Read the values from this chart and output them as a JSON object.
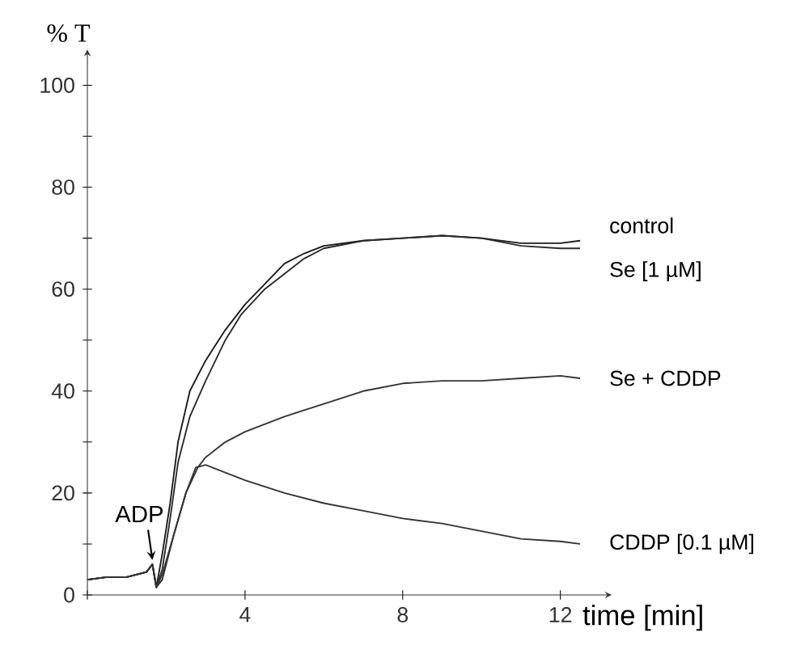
{
  "chart_data": {
    "type": "line",
    "xlabel": "time [min]",
    "ylabel": "% T",
    "xlim": [
      0,
      13.3
    ],
    "ylim": [
      0,
      107
    ],
    "xticks": [
      {
        "value": 0,
        "label": null
      },
      4,
      8,
      12
    ],
    "yticks": [
      0,
      {
        "value": 10,
        "label": null
      },
      20,
      {
        "value": 30,
        "label": null
      },
      40,
      {
        "value": 50,
        "label": null
      },
      60,
      {
        "value": 70,
        "label": null
      },
      80,
      {
        "value": 90,
        "label": null
      },
      100
    ],
    "annotations": [
      {
        "text": "ADP",
        "x": 1.65,
        "y": 6
      }
    ],
    "series": [
      {
        "name": "control",
        "color": "#1a1a1a",
        "x": [
          0,
          0.5,
          1,
          1.5,
          1.65,
          1.75,
          1.9,
          2.1,
          2.3,
          2.6,
          3,
          3.5,
          4,
          4.5,
          5,
          5.5,
          6,
          7,
          8,
          9,
          10,
          11,
          12,
          12.5
        ],
        "values": [
          3,
          3.5,
          3.5,
          4.5,
          6,
          1.5,
          8,
          18,
          30,
          40,
          46,
          52,
          57,
          61,
          65,
          67,
          68.5,
          69.5,
          70,
          70.5,
          70,
          69,
          69,
          69.5
        ]
      },
      {
        "name": "Se [1 µM]",
        "color": "#2a2a2a",
        "x": [
          0,
          0.5,
          1,
          1.5,
          1.65,
          1.75,
          1.9,
          2.1,
          2.3,
          2.6,
          3,
          3.5,
          3.9,
          4.5,
          5,
          5.5,
          6,
          7,
          8,
          9,
          10,
          11,
          12,
          12.5
        ],
        "values": [
          3,
          3.5,
          3.5,
          4.5,
          6,
          1.5,
          5,
          15,
          26,
          35,
          42,
          50,
          55,
          60,
          63,
          66,
          68,
          69.5,
          70,
          70.5,
          70,
          68.5,
          68,
          68
        ]
      },
      {
        "name": "Se + CDDP",
        "color": "#333333",
        "x": [
          0,
          0.5,
          1,
          1.5,
          1.65,
          1.75,
          1.9,
          2.2,
          2.5,
          2.8,
          3,
          3.5,
          4,
          5,
          6,
          7,
          8,
          9,
          10,
          11,
          12,
          12.5
        ],
        "values": [
          3,
          3.5,
          3.5,
          4.5,
          6,
          1.5,
          4,
          12,
          20,
          25,
          27,
          30,
          32,
          35,
          37.5,
          40,
          41.5,
          42,
          42,
          42.5,
          43,
          42.5
        ]
      },
      {
        "name": "CDDP [0.1 µM]",
        "color": "#333333",
        "x": [
          0,
          0.5,
          1,
          1.5,
          1.65,
          1.75,
          1.9,
          2.2,
          2.5,
          2.75,
          3,
          3.5,
          4,
          5,
          6,
          7,
          8,
          9,
          10,
          11,
          12,
          12.5
        ],
        "values": [
          3,
          3.5,
          3.5,
          4.5,
          6,
          1.5,
          3,
          12,
          20,
          25,
          25.5,
          24,
          22.5,
          20,
          18,
          16.5,
          15,
          14,
          12.5,
          11,
          10.5,
          10
        ]
      }
    ]
  }
}
